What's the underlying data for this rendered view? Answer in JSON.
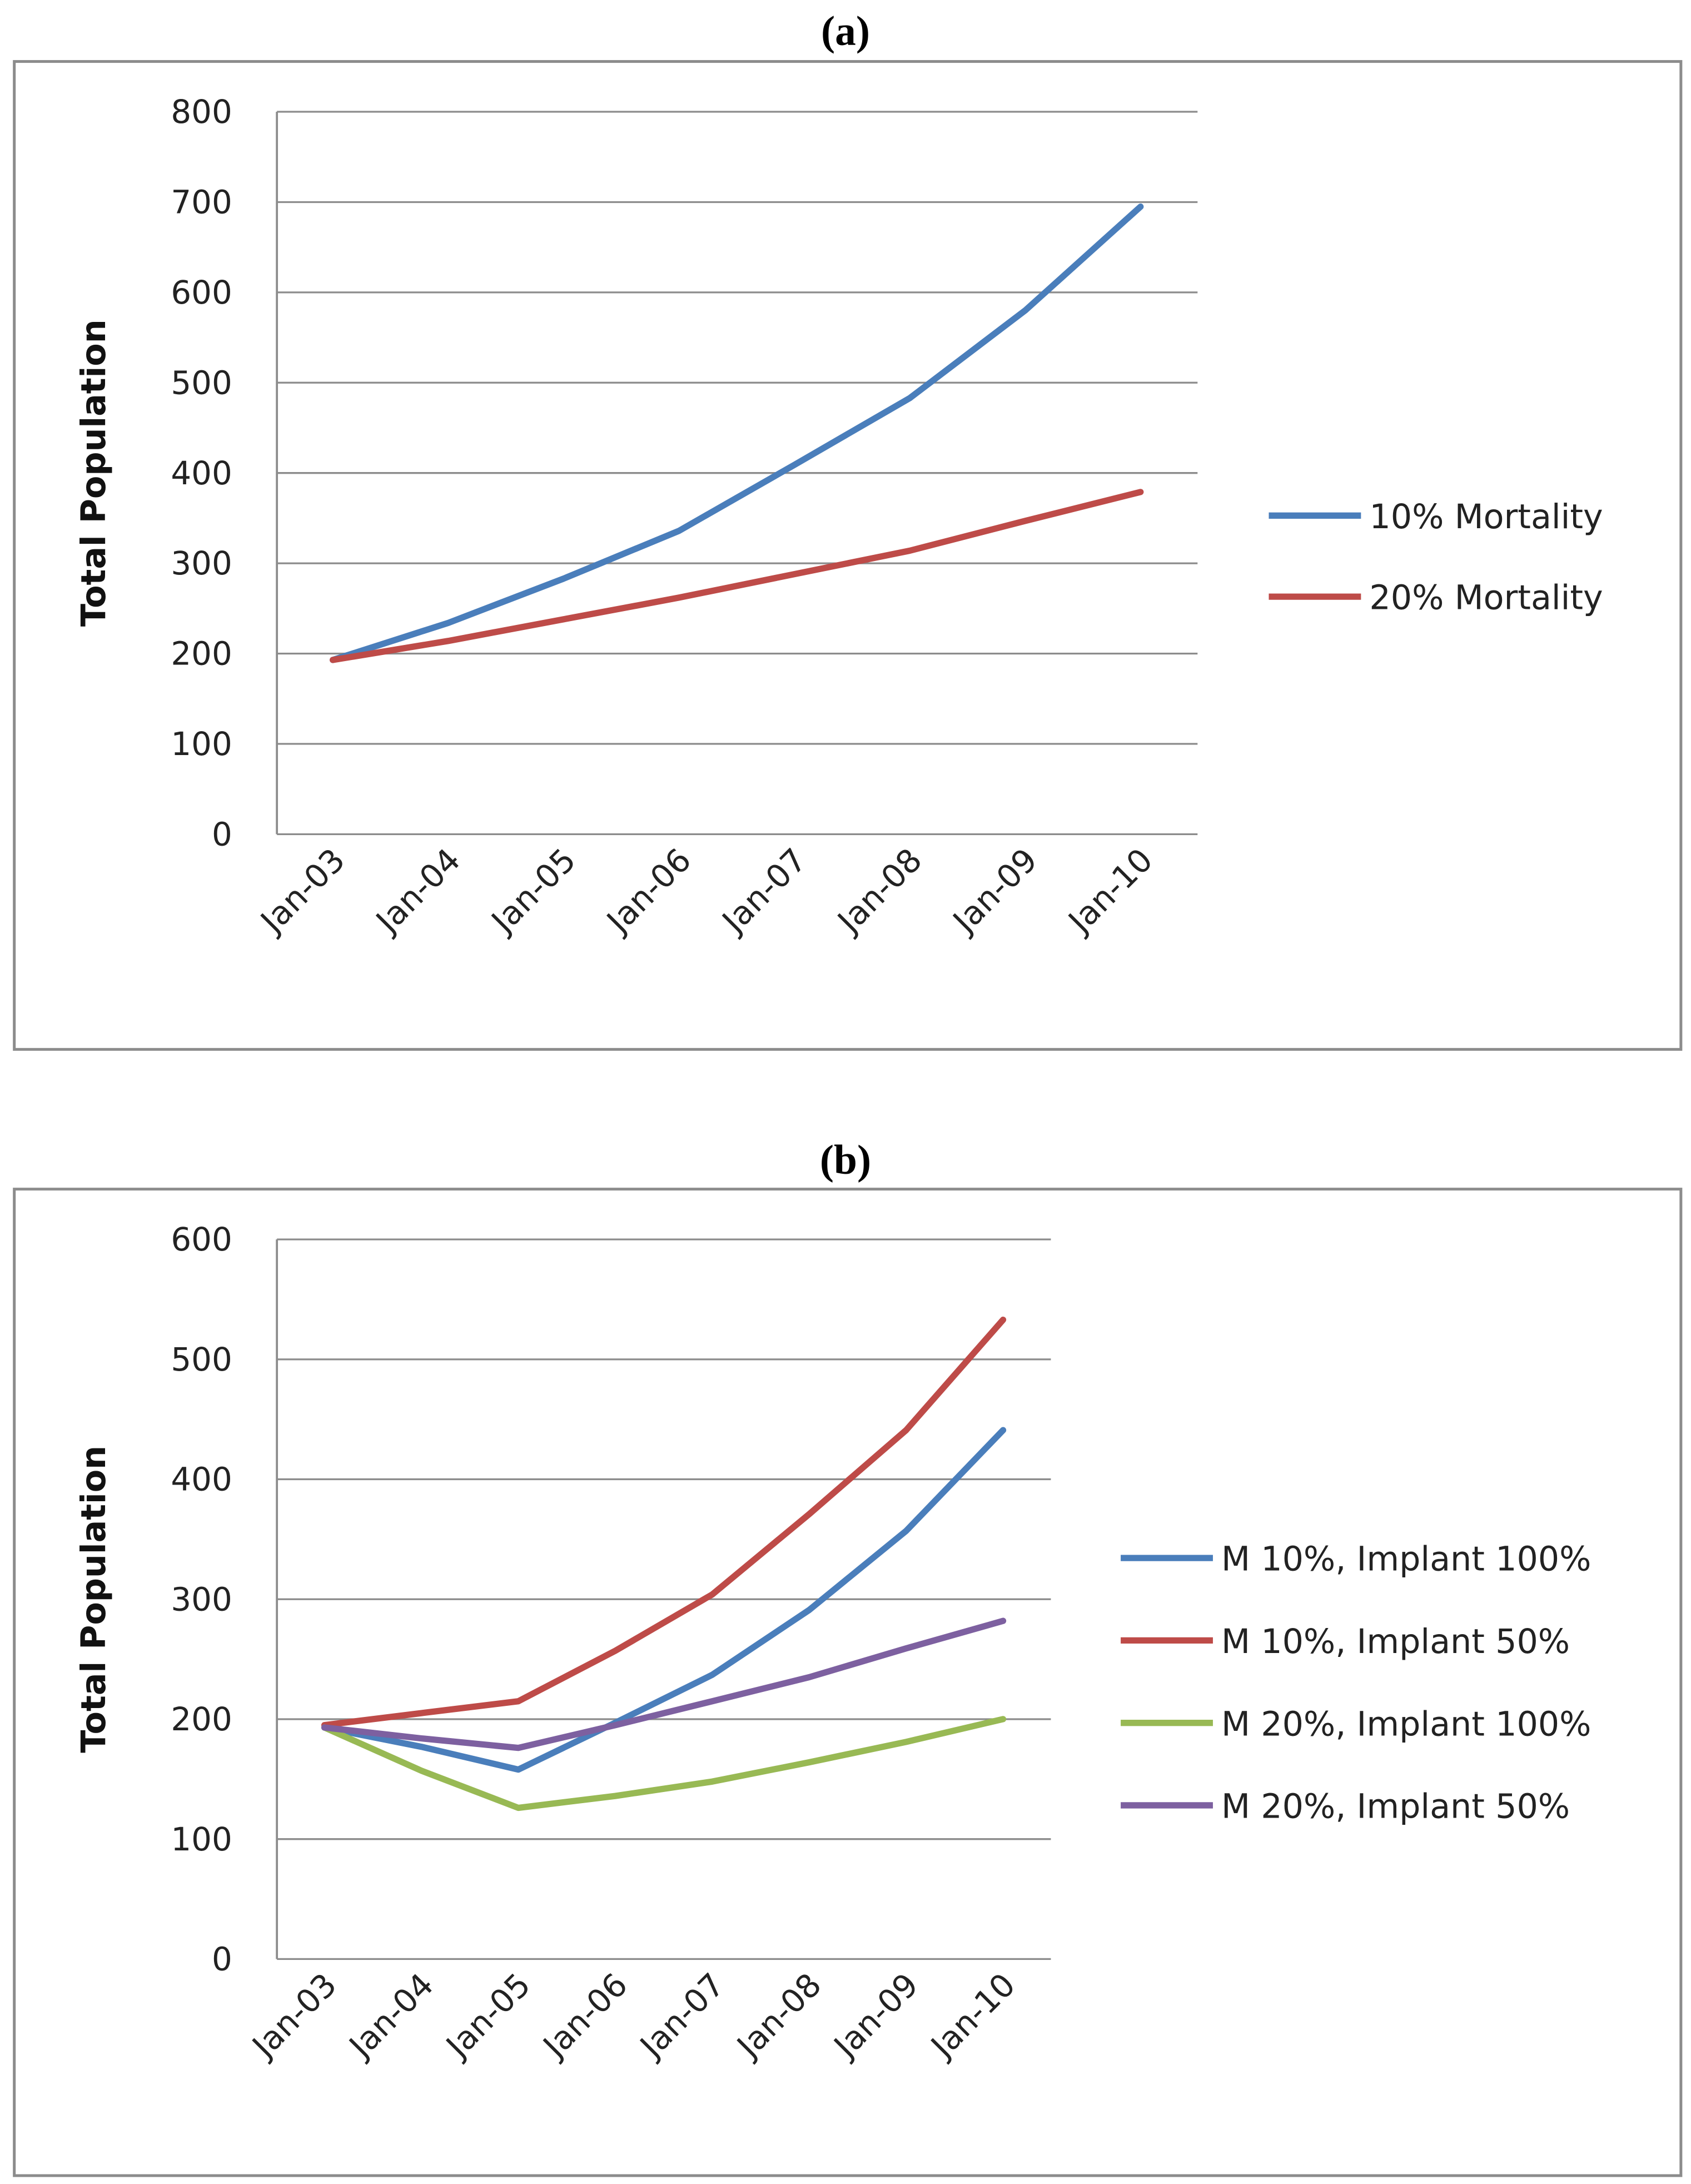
{
  "chart_data": [
    {
      "panel_label": "(a)",
      "type": "line",
      "ylabel": "Total Population",
      "xlabel": "",
      "ylim": [
        0,
        800
      ],
      "yticks": [
        0,
        100,
        200,
        300,
        400,
        500,
        600,
        700,
        800
      ],
      "categories": [
        "Jan-03",
        "Jan-04",
        "Jan-05",
        "Jan-06",
        "Jan-07",
        "Jan-08",
        "Jan-09",
        "Jan-10"
      ],
      "grid": "horizontal",
      "legend_position": "right",
      "series": [
        {
          "name": "10% Mortality",
          "color": "#4a7ebb",
          "values": [
            193,
            234,
            283,
            336,
            409,
            483,
            580,
            695
          ]
        },
        {
          "name": "20% Mortality",
          "color": "#be4b48",
          "values": [
            193,
            214,
            238,
            262,
            288,
            314,
            347,
            379
          ]
        }
      ]
    },
    {
      "panel_label": "(b)",
      "type": "line",
      "ylabel": "Total Population",
      "xlabel": "",
      "ylim": [
        0,
        600
      ],
      "yticks": [
        0,
        100,
        200,
        300,
        400,
        500,
        600
      ],
      "categories": [
        "Jan-03",
        "Jan-04",
        "Jan-05",
        "Jan-06",
        "Jan-07",
        "Jan-08",
        "Jan-09",
        "Jan-10"
      ],
      "grid": "horizontal",
      "legend_position": "right",
      "series": [
        {
          "name": "M 10%, Implant 100%",
          "color": "#4a7ebb",
          "values": [
            193,
            177,
            158,
            197,
            237,
            291,
            357,
            441
          ]
        },
        {
          "name": "M 10%, Implant 50%",
          "color": "#be4b48",
          "values": [
            195,
            205,
            215,
            257,
            304,
            371,
            441,
            533
          ]
        },
        {
          "name": "M 20%, Implant 100%",
          "color": "#98b954",
          "values": [
            193,
            157,
            126,
            136,
            148,
            164,
            181,
            200
          ]
        },
        {
          "name": "M 20%, Implant 50%",
          "color": "#7d60a0",
          "values": [
            193,
            184,
            176,
            195,
            215,
            235,
            259,
            282
          ]
        }
      ]
    }
  ]
}
